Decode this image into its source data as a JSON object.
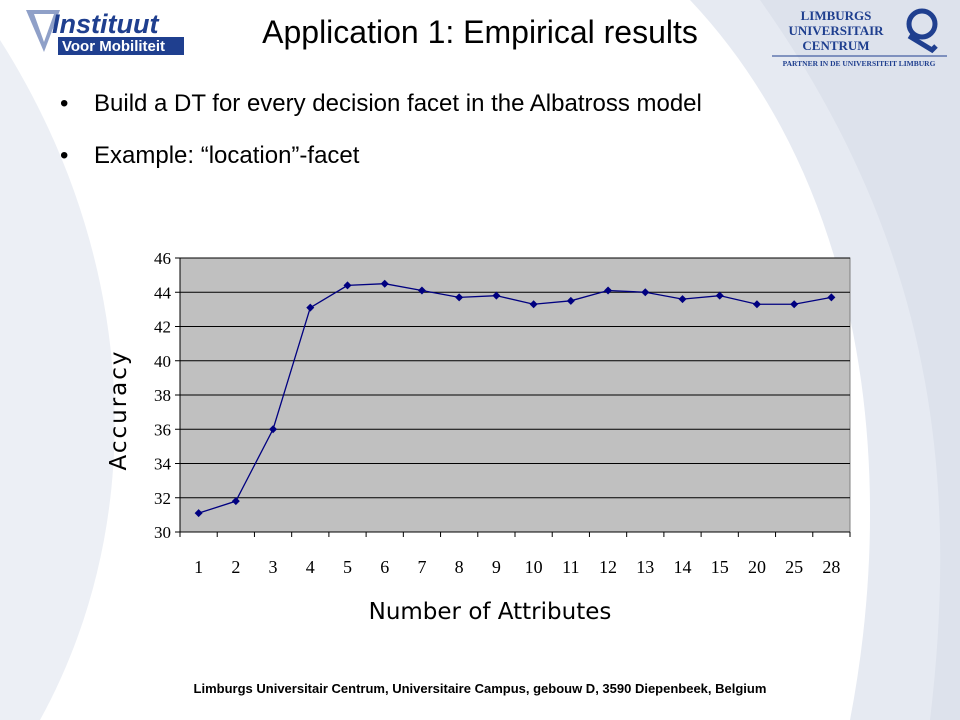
{
  "slide": {
    "title": "Application 1: Empirical results",
    "bullets": [
      "Build a DT for every decision facet in the Albatross model",
      "Example: “location”-facet"
    ],
    "footer": "Limburgs Universitair Centrum, Universitaire Campus, gebouw D, 3590 Diepenbeek, Belgium"
  },
  "logos": {
    "left": {
      "line1": "Instituut",
      "line2": "Voor Mobiliteit"
    },
    "right": {
      "line1": "LIMBURGS",
      "line2": "UNIVERSITAIR",
      "line3": "CENTRUM",
      "line4": "PARTNER IN DE UNIVERSITEIT LIMBURG"
    }
  },
  "colors": {
    "plot_background": "#c0c0c0",
    "series": "#000080",
    "swoosh": "#dfe4ee",
    "logo_blue": "#1f3f8f"
  },
  "chart_data": {
    "type": "line",
    "categories": [
      "1",
      "2",
      "3",
      "4",
      "5",
      "6",
      "7",
      "8",
      "9",
      "10",
      "11",
      "12",
      "13",
      "14",
      "15",
      "20",
      "25",
      "28"
    ],
    "series": [
      {
        "values": [
          31.1,
          31.8,
          36.0,
          43.1,
          44.4,
          44.5,
          44.1,
          43.7,
          43.8,
          43.3,
          43.5,
          44.1,
          44.0,
          43.6,
          43.8,
          43.3,
          43.3,
          43.7
        ]
      }
    ],
    "xlabel": "Number of Attributes",
    "ylabel": "Accuracy",
    "ylim": [
      30,
      46
    ],
    "yticks": [
      30,
      32,
      34,
      36,
      38,
      40,
      42,
      44,
      46
    ],
    "grid": true,
    "legend": "none"
  }
}
